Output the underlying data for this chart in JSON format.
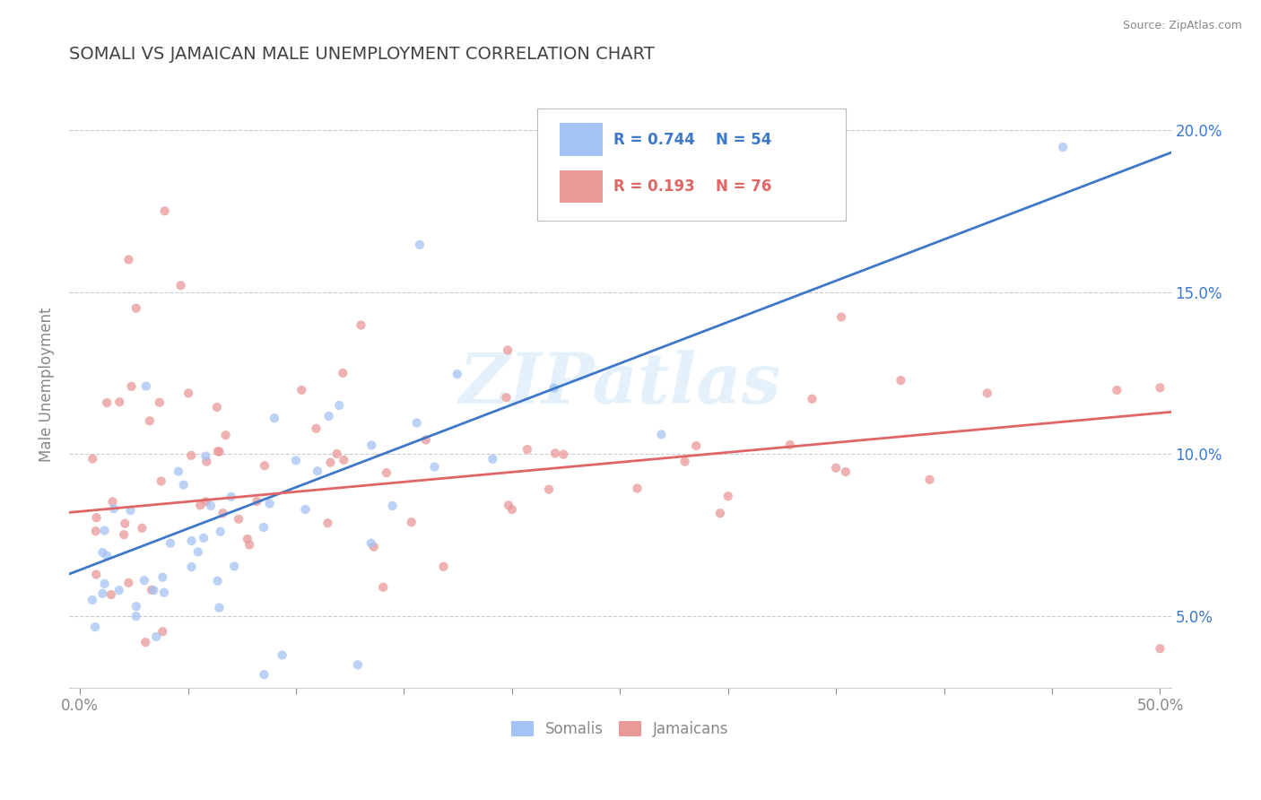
{
  "title": "SOMALI VS JAMAICAN MALE UNEMPLOYMENT CORRELATION CHART",
  "source_text": "Source: ZipAtlas.com",
  "ylabel": "Male Unemployment",
  "watermark": "ZIPatlas",
  "xlim": [
    -0.005,
    0.505
  ],
  "ylim": [
    0.028,
    0.215
  ],
  "xticks": [
    0.0,
    0.05,
    0.1,
    0.15,
    0.2,
    0.25,
    0.3,
    0.35,
    0.4,
    0.45,
    0.5
  ],
  "xtick_label_positions": [
    0.0,
    0.5
  ],
  "xticklabels_shown": [
    "0.0%",
    "50.0%"
  ],
  "yticks": [
    0.05,
    0.1,
    0.15,
    0.2
  ],
  "yticklabels": [
    "5.0%",
    "10.0%",
    "15.0%",
    "20.0%"
  ],
  "somali_color": "#a4c2f4",
  "jamaican_color": "#ea9999",
  "somali_line_color": "#3d78c9",
  "jamaican_line_color": "#e06666",
  "legend_R_somali": "R = 0.744",
  "legend_N_somali": "N = 54",
  "legend_R_jamaican": "R = 0.193",
  "legend_N_jamaican": "N = 76",
  "title_color": "#434343",
  "axis_color": "#888888",
  "right_axis_color": "#3d78c9",
  "grid_color": "#cccccc",
  "background_color": "#ffffff",
  "somali_line_x0": 0.0,
  "somali_line_y0": 0.063,
  "somali_line_x1": 0.5,
  "somali_line_y1": 0.193,
  "jamaican_line_x0": 0.0,
  "jamaican_line_y0": 0.082,
  "jamaican_line_x1": 0.5,
  "jamaican_line_y1": 0.113
}
